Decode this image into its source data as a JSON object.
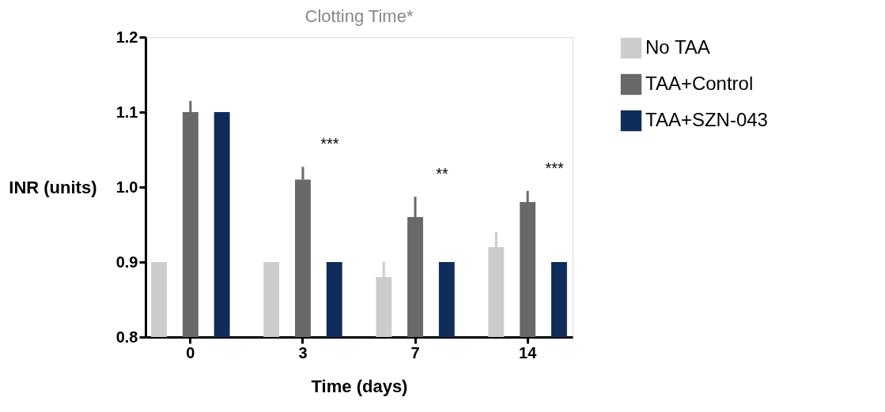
{
  "chart_data": {
    "type": "bar",
    "title": "Clotting Time*",
    "xlabel": "Time (days)",
    "ylabel": "INR (units)",
    "categories": [
      "0",
      "3",
      "7",
      "14"
    ],
    "series": [
      {
        "name": "No TAA",
        "color": "#cccccc",
        "values": [
          0.9,
          0.9,
          0.88,
          0.92
        ],
        "errors": [
          null,
          null,
          [
            0.88,
            0.9
          ],
          [
            0.92,
            0.94
          ]
        ]
      },
      {
        "name": "TAA+Control",
        "color": "#696969",
        "values": [
          1.1,
          1.01,
          0.96,
          0.98
        ],
        "errors": [
          [
            1.1,
            1.115
          ],
          [
            1.01,
            1.027
          ],
          [
            0.96,
            0.987
          ],
          [
            0.98,
            0.995
          ]
        ]
      },
      {
        "name": "TAA+SZN-043",
        "color": "#0f2d5a",
        "values": [
          1.1,
          0.9,
          0.9,
          0.9
        ]
      }
    ],
    "ylim": [
      0.8,
      1.2
    ],
    "yticks": [
      0.8,
      0.9,
      {
        "value": 1.0,
        "label": "1.0"
      },
      1.1,
      1.2
    ],
    "grid": false,
    "legend": "right",
    "annotations": [
      "***",
      "**",
      "***"
    ]
  }
}
